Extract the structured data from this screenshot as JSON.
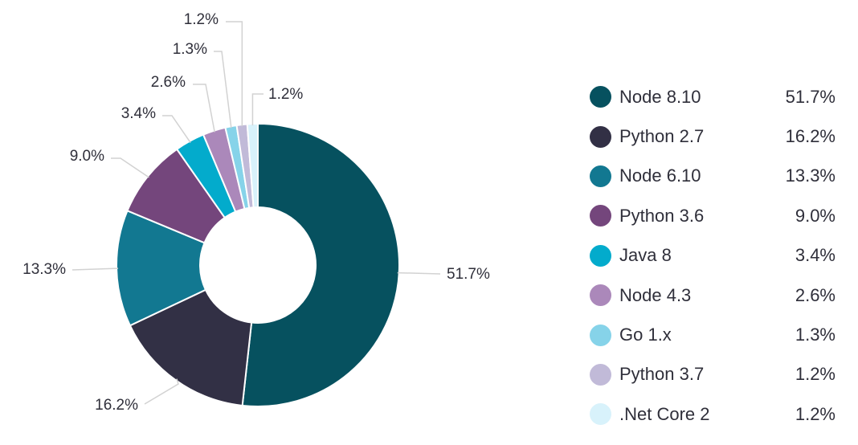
{
  "chart_data": {
    "type": "pie",
    "style": "donut",
    "categories": [
      "Node 8.10",
      "Python 2.7",
      "Node 6.10",
      "Python 3.6",
      "Java 8",
      "Node 4.3",
      "Go 1.x",
      "Python 3.7",
      ".Net Core 2"
    ],
    "values": [
      51.7,
      16.2,
      13.3,
      9.0,
      3.4,
      2.6,
      1.3,
      1.2,
      1.2
    ],
    "labels": [
      "51.7%",
      "16.2%",
      "13.3%",
      "9.0%",
      "3.4%",
      "2.6%",
      "1.3%",
      "1.2%",
      "1.2%"
    ],
    "colors": [
      "#06515f",
      "#323045",
      "#127891",
      "#74467c",
      "#03abcc",
      "#ab88ba",
      "#86d3e9",
      "#c1bad8",
      "#d8f2fb"
    ],
    "legend_position": "right"
  }
}
